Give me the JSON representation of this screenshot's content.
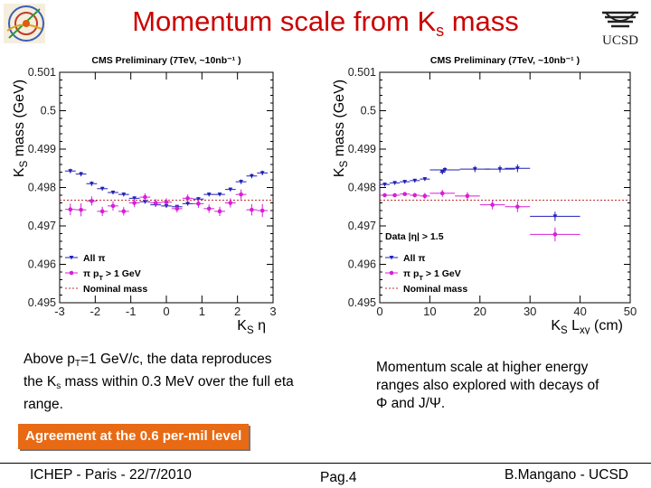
{
  "slide": {
    "title_main": "Momentum scale from K",
    "title_sub": "s",
    "title_end": " mass",
    "ucsd_logo_text": "UCSD",
    "left_text_1": "Above p",
    "left_text_1_sub": "T",
    "left_text_2": "=1 GeV/c, the data reproduces the K",
    "left_text_2_sub": "s",
    "left_text_3": " mass within 0.3 MeV over the full eta range.",
    "right_text": "Momentum scale at higher energy ranges also explored with decays of Φ and J/Ψ.",
    "agreement_label": "Agreement at the 0.6 per-mil level",
    "footer_left": "ICHEP - Paris - 22/7/2010",
    "footer_center": "Pag.4",
    "footer_right": "B.Mangano - UCSD",
    "accent_color": "#cc0000",
    "agreement_color": "#e86a14"
  },
  "chart_data": [
    {
      "type": "scatter",
      "title": "CMS Preliminary (7TeV, ~10nb⁻¹ )",
      "xlabel": "K_S η",
      "ylabel": "K_S mass (GeV)",
      "xlim": [
        -3,
        3
      ],
      "ylim": [
        0.495,
        0.501
      ],
      "xticks": [
        -3,
        -2,
        -1,
        0,
        1,
        2,
        3
      ],
      "yticks": [
        0.495,
        0.496,
        0.497,
        0.498,
        0.499,
        0.5,
        0.501
      ],
      "legend_position": "bottom-left",
      "nominal_mass": 0.49767,
      "series": [
        {
          "name": "All π",
          "color": "#1f1fb8",
          "marker": "triangle",
          "points": [
            {
              "x": -2.7,
              "y": 0.49843,
              "xerr": 0.15,
              "yerr": 6e-05
            },
            {
              "x": -2.4,
              "y": 0.49835,
              "xerr": 0.15,
              "yerr": 6e-05
            },
            {
              "x": -2.1,
              "y": 0.4981,
              "xerr": 0.15,
              "yerr": 6e-05
            },
            {
              "x": -1.8,
              "y": 0.49797,
              "xerr": 0.15,
              "yerr": 5e-05
            },
            {
              "x": -1.5,
              "y": 0.49787,
              "xerr": 0.15,
              "yerr": 5e-05
            },
            {
              "x": -1.2,
              "y": 0.49782,
              "xerr": 0.15,
              "yerr": 5e-05
            },
            {
              "x": -0.9,
              "y": 0.49772,
              "xerr": 0.15,
              "yerr": 5e-05
            },
            {
              "x": -0.6,
              "y": 0.49763,
              "xerr": 0.15,
              "yerr": 5e-05
            },
            {
              "x": -0.3,
              "y": 0.49755,
              "xerr": 0.15,
              "yerr": 5e-05
            },
            {
              "x": 0.0,
              "y": 0.49752,
              "xerr": 0.15,
              "yerr": 5e-05
            },
            {
              "x": 0.3,
              "y": 0.4975,
              "xerr": 0.15,
              "yerr": 5e-05
            },
            {
              "x": 0.6,
              "y": 0.49758,
              "xerr": 0.15,
              "yerr": 5e-05
            },
            {
              "x": 0.9,
              "y": 0.4977,
              "xerr": 0.15,
              "yerr": 5e-05
            },
            {
              "x": 1.2,
              "y": 0.49782,
              "xerr": 0.15,
              "yerr": 5e-05
            },
            {
              "x": 1.5,
              "y": 0.49782,
              "xerr": 0.15,
              "yerr": 5e-05
            },
            {
              "x": 1.8,
              "y": 0.49795,
              "xerr": 0.15,
              "yerr": 5e-05
            },
            {
              "x": 2.1,
              "y": 0.49815,
              "xerr": 0.15,
              "yerr": 6e-05
            },
            {
              "x": 2.4,
              "y": 0.4983,
              "xerr": 0.15,
              "yerr": 6e-05
            },
            {
              "x": 2.7,
              "y": 0.49838,
              "xerr": 0.15,
              "yerr": 6e-05
            }
          ]
        },
        {
          "name": "π p_T > 1 GeV",
          "color": "#d61fd6",
          "marker": "circle",
          "points": [
            {
              "x": -2.7,
              "y": 0.49743,
              "xerr": 0.15,
              "yerr": 0.00015
            },
            {
              "x": -2.4,
              "y": 0.49742,
              "xerr": 0.15,
              "yerr": 0.00017
            },
            {
              "x": -2.1,
              "y": 0.49765,
              "xerr": 0.15,
              "yerr": 0.00012
            },
            {
              "x": -1.8,
              "y": 0.49738,
              "xerr": 0.15,
              "yerr": 0.00012
            },
            {
              "x": -1.5,
              "y": 0.49752,
              "xerr": 0.15,
              "yerr": 0.00012
            },
            {
              "x": -1.2,
              "y": 0.49738,
              "xerr": 0.15,
              "yerr": 0.00011
            },
            {
              "x": -0.9,
              "y": 0.4976,
              "xerr": 0.15,
              "yerr": 0.00011
            },
            {
              "x": -0.6,
              "y": 0.49775,
              "xerr": 0.15,
              "yerr": 0.0001
            },
            {
              "x": -0.3,
              "y": 0.4976,
              "xerr": 0.15,
              "yerr": 0.0001
            },
            {
              "x": 0.0,
              "y": 0.49762,
              "xerr": 0.15,
              "yerr": 0.0001
            },
            {
              "x": 0.3,
              "y": 0.49745,
              "xerr": 0.15,
              "yerr": 0.0001
            },
            {
              "x": 0.6,
              "y": 0.49772,
              "xerr": 0.15,
              "yerr": 0.0001
            },
            {
              "x": 0.9,
              "y": 0.49758,
              "xerr": 0.15,
              "yerr": 0.00011
            },
            {
              "x": 1.2,
              "y": 0.49745,
              "xerr": 0.15,
              "yerr": 0.00011
            },
            {
              "x": 1.5,
              "y": 0.49738,
              "xerr": 0.15,
              "yerr": 0.00012
            },
            {
              "x": 1.8,
              "y": 0.4976,
              "xerr": 0.15,
              "yerr": 0.00012
            },
            {
              "x": 2.1,
              "y": 0.49782,
              "xerr": 0.15,
              "yerr": 0.00013
            },
            {
              "x": 2.4,
              "y": 0.49742,
              "xerr": 0.15,
              "yerr": 0.00015
            },
            {
              "x": 2.7,
              "y": 0.4974,
              "xerr": 0.15,
              "yerr": 0.00017
            }
          ]
        }
      ]
    },
    {
      "type": "scatter",
      "title": "CMS Preliminary (7TeV, ~10nb⁻¹ )",
      "xlabel": "K_S L_xy (cm)",
      "ylabel": "K_S mass (GeV)",
      "xlim": [
        0,
        50
      ],
      "ylim": [
        0.495,
        0.501
      ],
      "xticks": [
        0,
        10,
        20,
        30,
        40,
        50
      ],
      "yticks": [
        0.495,
        0.496,
        0.497,
        0.498,
        0.499,
        0.5,
        0.501
      ],
      "legend_header": "Data |η| > 1.5",
      "legend_position": "bottom-left",
      "nominal_mass": 0.49767,
      "series": [
        {
          "name": "All π",
          "color": "#1f1fb8",
          "marker": "triangle",
          "points": [
            {
              "x": 1,
              "y": 0.49808,
              "xerr": 1,
              "yerr": 5e-05
            },
            {
              "x": 3,
              "y": 0.49812,
              "xerr": 1,
              "yerr": 5e-05
            },
            {
              "x": 5,
              "y": 0.49815,
              "xerr": 1,
              "yerr": 5e-05
            },
            {
              "x": 7,
              "y": 0.49818,
              "xerr": 1,
              "yerr": 5e-05
            },
            {
              "x": 9,
              "y": 0.49822,
              "xerr": 1,
              "yerr": 5e-05
            },
            {
              "x": 13,
              "y": 0.49846,
              "xerr": 3,
              "yerr": 7e-05
            },
            {
              "x": 19,
              "y": 0.49848,
              "xerr": 3,
              "yerr": 8e-05
            },
            {
              "x": 24,
              "y": 0.49848,
              "xerr": 3,
              "yerr": 9e-05
            },
            {
              "x": 12.5,
              "y": 0.4984,
              "xerr": 0.5,
              "yerr": 6e-05
            },
            {
              "x": 27.5,
              "y": 0.4985,
              "xerr": 2.5,
              "yerr": 0.0001
            },
            {
              "x": 35,
              "y": 0.49725,
              "xerr": 5,
              "yerr": 0.00012
            }
          ]
        },
        {
          "name": "π p_T > 1 GeV",
          "color": "#d61fd6",
          "marker": "circle",
          "points": [
            {
              "x": 1,
              "y": 0.4978,
              "xerr": 1,
              "yerr": 5e-05
            },
            {
              "x": 3,
              "y": 0.4978,
              "xerr": 1,
              "yerr": 5e-05
            },
            {
              "x": 5,
              "y": 0.49783,
              "xerr": 1,
              "yerr": 5e-05
            },
            {
              "x": 7,
              "y": 0.4978,
              "xerr": 1,
              "yerr": 6e-05
            },
            {
              "x": 9,
              "y": 0.49778,
              "xerr": 1,
              "yerr": 8e-05
            },
            {
              "x": 12.5,
              "y": 0.49785,
              "xerr": 2.5,
              "yerr": 9e-05
            },
            {
              "x": 17.5,
              "y": 0.49778,
              "xerr": 2.5,
              "yerr": 0.0001
            },
            {
              "x": 22.5,
              "y": 0.49755,
              "xerr": 2.5,
              "yerr": 0.00012
            },
            {
              "x": 27.5,
              "y": 0.4975,
              "xerr": 2.5,
              "yerr": 0.00014
            },
            {
              "x": 35,
              "y": 0.49678,
              "xerr": 5,
              "yerr": 0.00018
            }
          ]
        }
      ]
    }
  ]
}
